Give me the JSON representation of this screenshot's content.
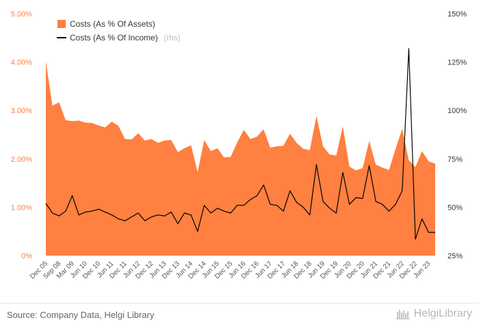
{
  "chart_data": {
    "type": "area",
    "title": "",
    "y_left": {
      "label": "",
      "range": [
        0,
        5
      ],
      "ticks": [
        "0%",
        "1.00%",
        "2.00%",
        "3.00%",
        "4.00%",
        "5.00%"
      ],
      "tick_values": [
        0,
        1,
        2,
        3,
        4,
        5
      ]
    },
    "y_right": {
      "label": "",
      "range": [
        25,
        150
      ],
      "ticks": [
        "25%",
        "50%",
        "75%",
        "100%",
        "125%",
        "150%"
      ],
      "tick_values": [
        25,
        50,
        75,
        100,
        125,
        150
      ]
    },
    "x_labels": [
      "Dec 05",
      "Sep 08",
      "Mar 09",
      "Jun 10",
      "Dec 10",
      "Jun 11",
      "Dec 11",
      "Jun 12",
      "Dec 12",
      "Jun 13",
      "Dec 13",
      "Jun 14",
      "Dec 14",
      "Jun 15",
      "Dec 15",
      "Jun 16",
      "Dec 16",
      "Jun 17",
      "Dec 17",
      "Jun 18",
      "Dec 18",
      "Jun 19",
      "Dec 19",
      "Jun 20",
      "Dec 20",
      "Jun 21",
      "Dec 21",
      "Jun 22",
      "Dec 22",
      "Jun 23"
    ],
    "label_index": [
      0,
      2,
      4,
      6,
      8,
      10,
      12,
      14,
      16,
      18,
      20,
      22,
      24,
      26,
      28,
      30,
      32,
      34,
      36,
      38,
      40,
      42,
      44,
      46,
      48,
      50,
      52,
      54,
      56,
      58
    ],
    "legend_position": "top-left",
    "grid": false,
    "series": [
      {
        "name": "Costs (As % Of Assets)",
        "axis": "left",
        "style": "area",
        "color": "#ff8040",
        "values": [
          4.02,
          3.1,
          3.17,
          2.8,
          2.78,
          2.79,
          2.75,
          2.74,
          2.69,
          2.65,
          2.77,
          2.68,
          2.41,
          2.4,
          2.53,
          2.38,
          2.41,
          2.33,
          2.38,
          2.39,
          2.14,
          2.22,
          2.28,
          1.73,
          2.39,
          2.16,
          2.22,
          2.03,
          2.04,
          2.34,
          2.6,
          2.41,
          2.46,
          2.61,
          2.23,
          2.26,
          2.27,
          2.52,
          2.33,
          2.21,
          2.18,
          2.89,
          2.26,
          2.09,
          2.07,
          2.67,
          1.84,
          1.76,
          1.81,
          2.37,
          1.88,
          1.82,
          1.77,
          2.21,
          2.62,
          1.97,
          1.83,
          2.16,
          1.95,
          1.9
        ]
      },
      {
        "name": "Costs (As % Of Income)",
        "name_note": "(rhs)",
        "axis": "right",
        "style": "line",
        "color": "#000000",
        "values": [
          52,
          47,
          45.5,
          48,
          56,
          46,
          47.5,
          48,
          49,
          47.5,
          46,
          44,
          43,
          45,
          47,
          43,
          45,
          46,
          45.5,
          47.5,
          41.5,
          47,
          46,
          37.5,
          51,
          47,
          49.5,
          48,
          47,
          51,
          51,
          54,
          56,
          61.5,
          51.5,
          51,
          48,
          58.5,
          52.5,
          50,
          46,
          72,
          53,
          49.5,
          47,
          68,
          51.5,
          55,
          54.5,
          71.5,
          53,
          51.5,
          48,
          51.5,
          58.5,
          132,
          33.5,
          44,
          37,
          37
        ]
      }
    ]
  },
  "legend": {
    "assets_label": "Costs (As % Of Assets)",
    "income_label": "Costs (As % Of Income)",
    "income_note": "(rhs)"
  },
  "footer": {
    "source": "Source: Company Data, Helgi Library",
    "brand": "HelgiLibrary"
  },
  "colors": {
    "area": "#ff8040",
    "line": "#000000",
    "left_axis": "#ff7f3f",
    "right_axis": "#333333"
  }
}
